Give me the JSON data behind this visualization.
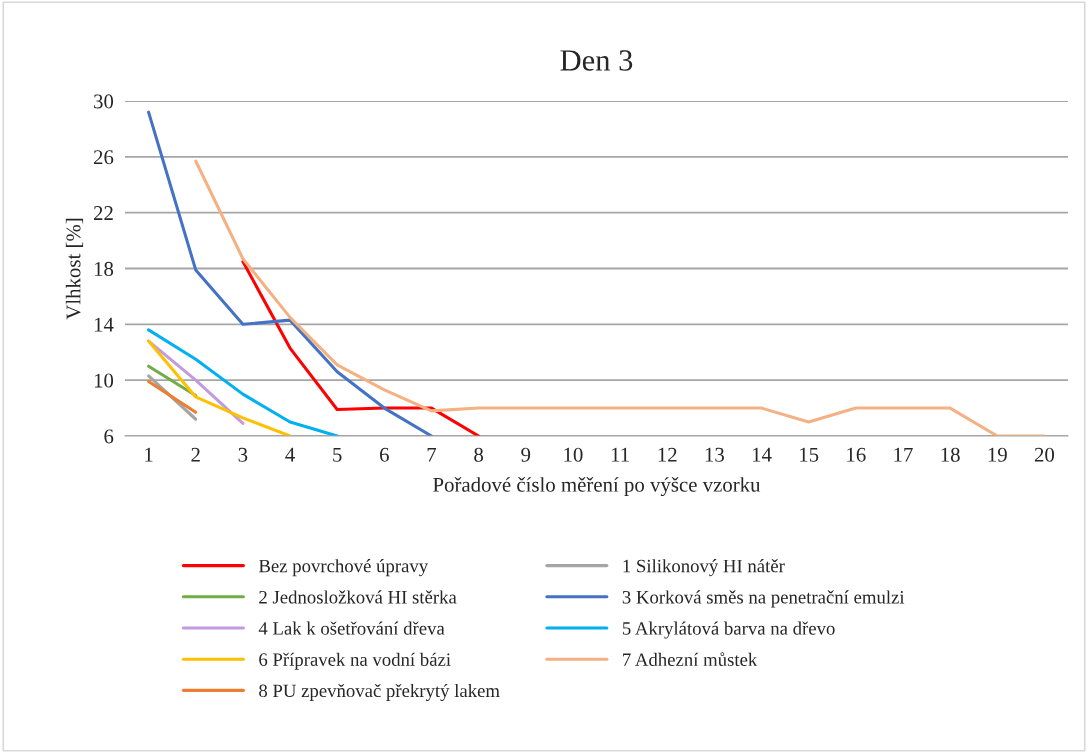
{
  "chart_data": {
    "type": "line",
    "title": "Den 3",
    "xlabel": "Pořadové číslo měření po výšce vzorku",
    "ylabel": "Vlhkost [%]",
    "categories": [
      "1",
      "2",
      "3",
      "4",
      "5",
      "6",
      "7",
      "8",
      "9",
      "10",
      "11",
      "12",
      "13",
      "14",
      "15",
      "16",
      "17",
      "18",
      "19",
      "20"
    ],
    "ylim": [
      6,
      30
    ],
    "yticks": [
      6,
      10,
      14,
      18,
      22,
      26,
      30
    ],
    "grid": "y",
    "legend": "bottom",
    "marker": "none",
    "line_style": "solid",
    "series": [
      {
        "name": "Bez povrchové úpravy",
        "color": "#ff0000",
        "values": [
          null,
          null,
          18.5,
          12.3,
          7.9,
          8.0,
          8.0,
          6.0,
          null,
          null,
          null,
          null,
          null,
          null,
          null,
          null,
          null,
          null,
          null,
          null
        ]
      },
      {
        "name": "1 Silikonový HI nátěr",
        "color": "#a5a5a5",
        "values": [
          10.3,
          7.2,
          null,
          null,
          null,
          null,
          null,
          null,
          null,
          null,
          null,
          null,
          null,
          null,
          null,
          null,
          null,
          null,
          null,
          null
        ]
      },
      {
        "name": "2 Jednosložková HI stěrka",
        "color": "#70ad47",
        "values": [
          11.0,
          8.9,
          null,
          null,
          null,
          null,
          null,
          null,
          null,
          null,
          null,
          null,
          null,
          null,
          null,
          null,
          null,
          null,
          null,
          null
        ]
      },
      {
        "name": "3 Korková směs na penetrační emulzi",
        "color": "#4472c4",
        "values": [
          29.2,
          17.9,
          14.0,
          14.3,
          10.6,
          8.0,
          6.0,
          null,
          null,
          null,
          null,
          null,
          null,
          null,
          null,
          null,
          null,
          null,
          null,
          null
        ]
      },
      {
        "name": "4 Lak k ošetřování dřeva",
        "color": "#c09be0",
        "values": [
          12.8,
          10.0,
          6.9,
          null,
          null,
          null,
          null,
          null,
          null,
          null,
          null,
          null,
          null,
          null,
          null,
          null,
          null,
          null,
          null,
          null
        ]
      },
      {
        "name": "5 Akrylátová barva na dřevo",
        "color": "#00b0f0",
        "values": [
          13.6,
          11.5,
          9.0,
          7.0,
          6.0,
          null,
          null,
          null,
          null,
          null,
          null,
          null,
          null,
          null,
          null,
          null,
          null,
          null,
          null,
          null
        ]
      },
      {
        "name": "6 Přípravek na vodní bázi",
        "color": "#ffc000",
        "values": [
          12.8,
          8.8,
          7.3,
          6.0,
          null,
          null,
          null,
          null,
          null,
          null,
          null,
          null,
          null,
          null,
          null,
          null,
          null,
          null,
          null,
          null
        ]
      },
      {
        "name": "7 Adhezní můstek",
        "color": "#f4b183",
        "values": [
          null,
          25.7,
          18.7,
          14.5,
          11.1,
          9.3,
          7.8,
          8.0,
          8.0,
          8.0,
          8.0,
          8.0,
          8.0,
          8.0,
          7.0,
          8.0,
          8.0,
          8.0,
          6.0,
          6.0
        ]
      },
      {
        "name": "8 PU zpevňovač překrytý lakem",
        "color": "#ed7d31",
        "values": [
          9.9,
          7.7,
          null,
          null,
          null,
          null,
          null,
          null,
          null,
          null,
          null,
          null,
          null,
          null,
          null,
          null,
          null,
          null,
          null,
          null
        ]
      }
    ]
  }
}
